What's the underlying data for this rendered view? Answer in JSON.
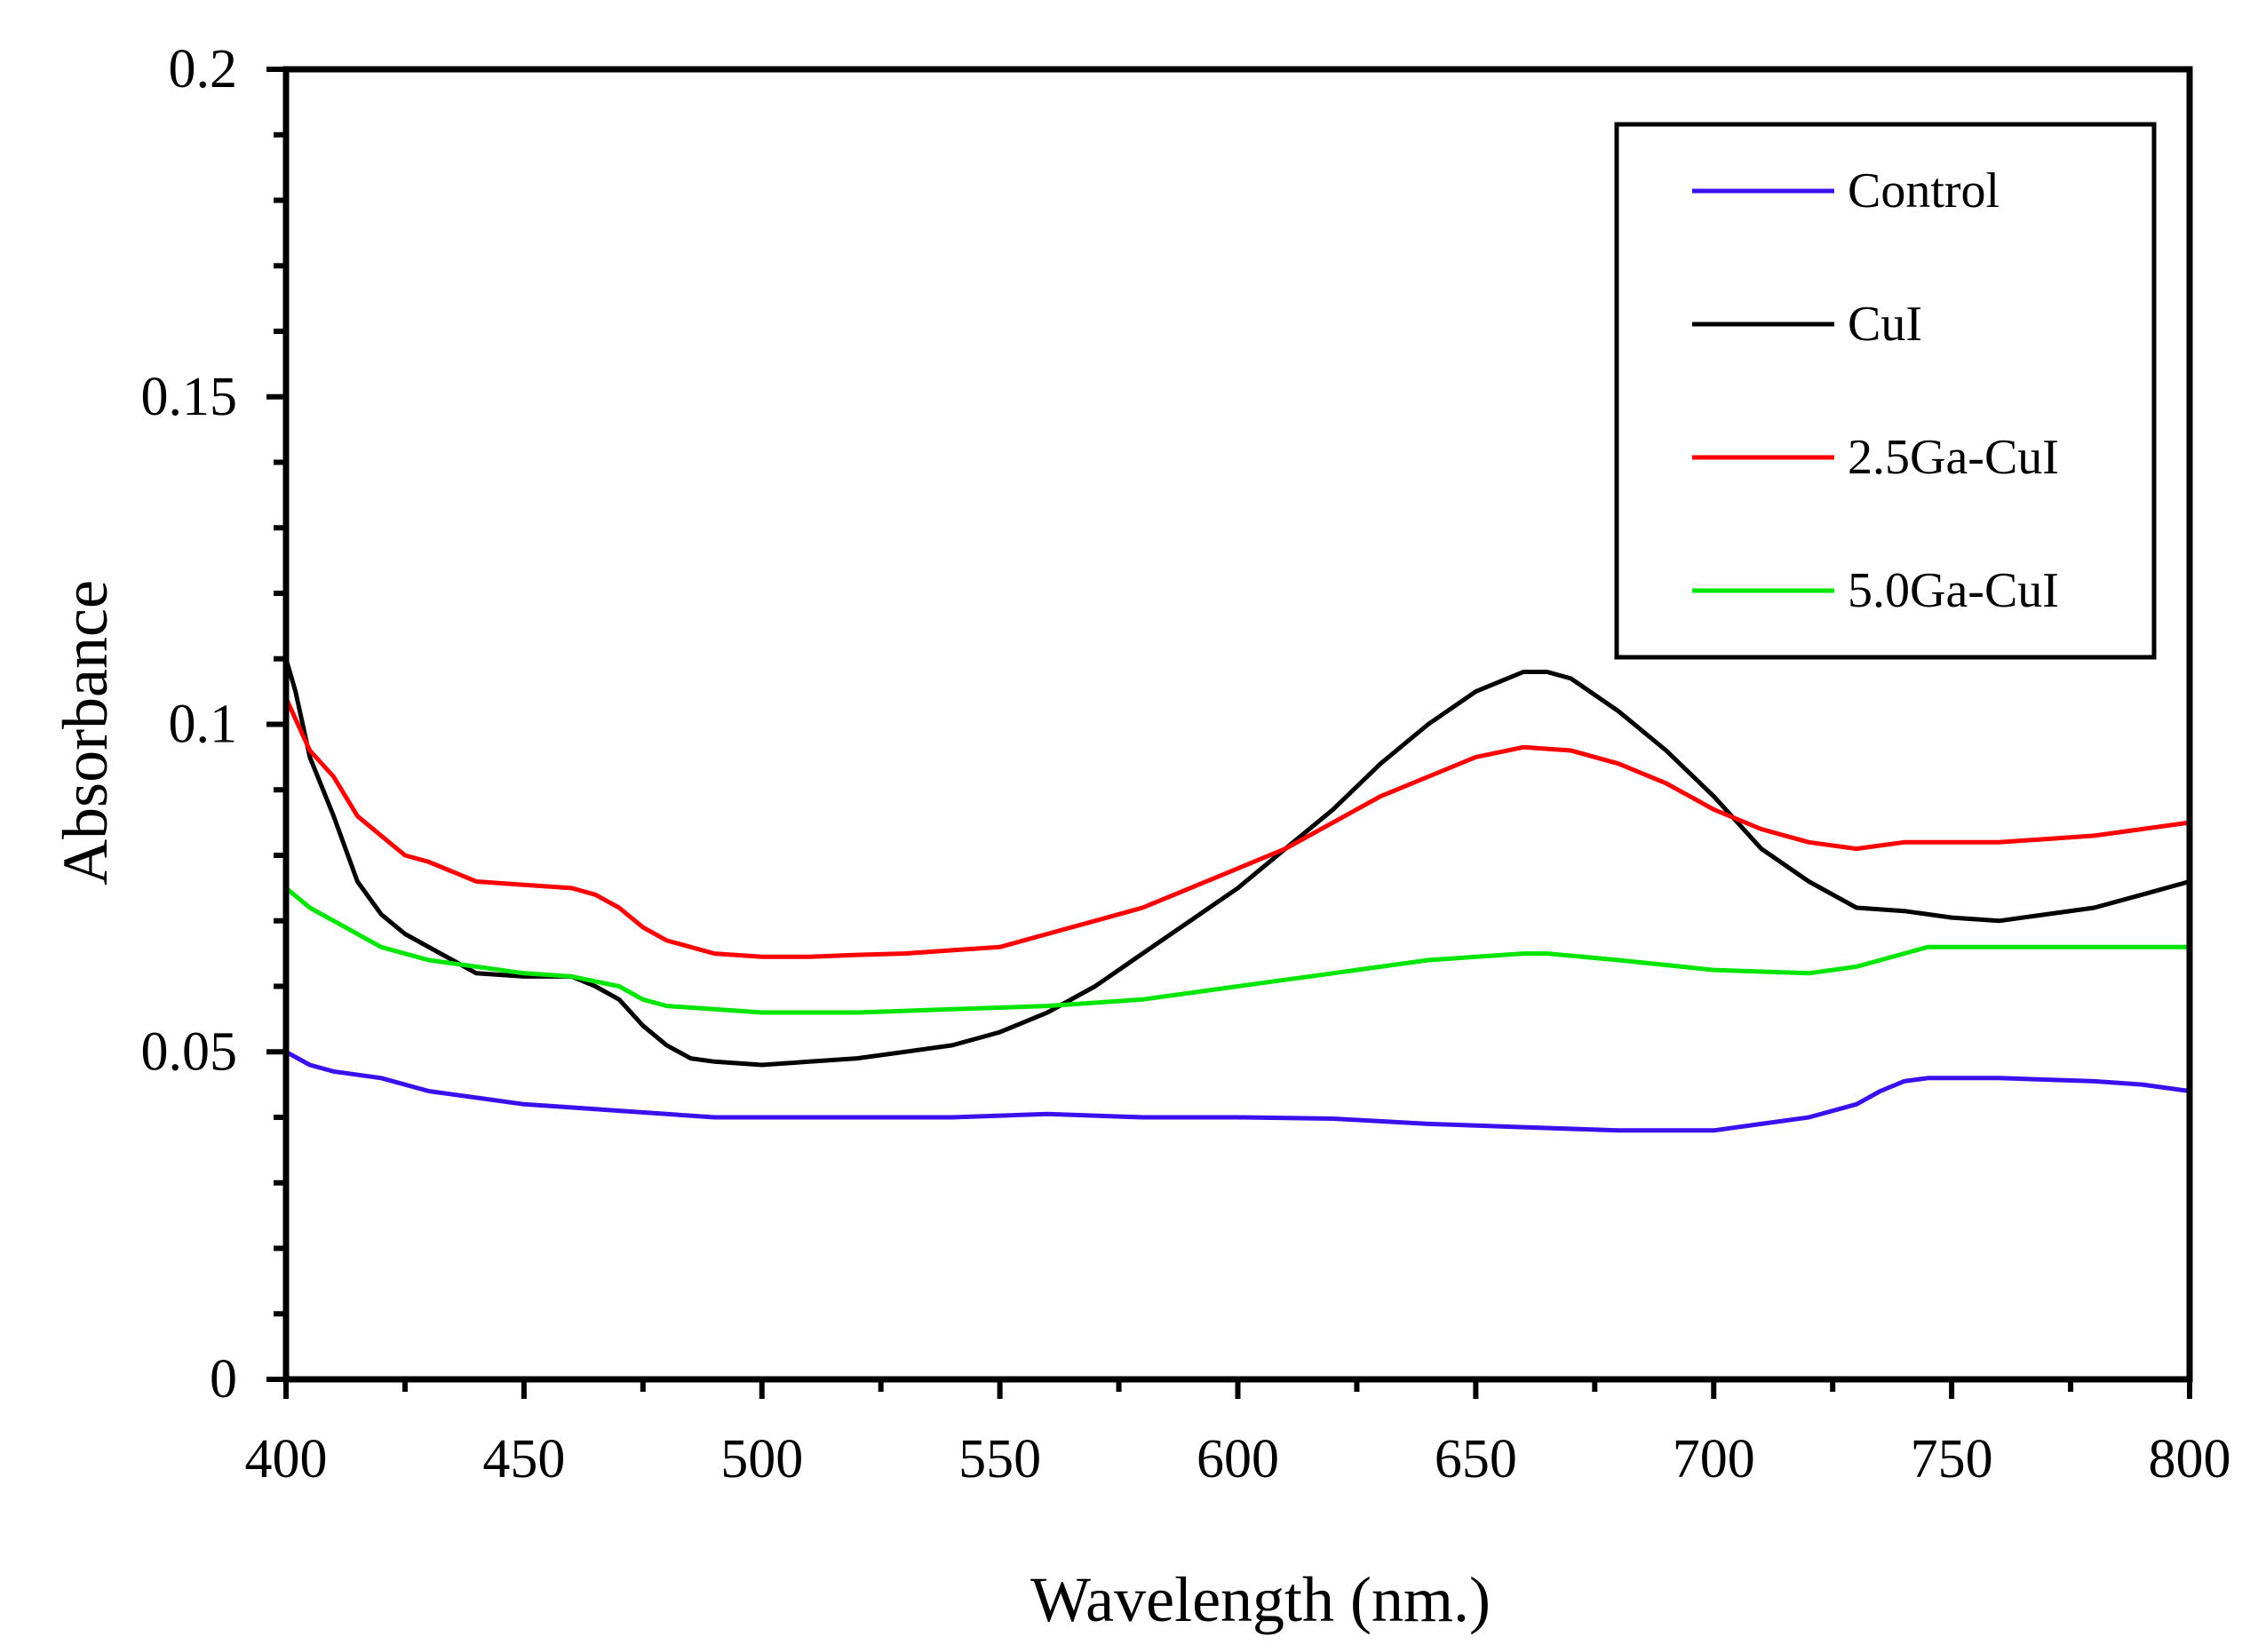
{
  "chart_data": {
    "type": "line",
    "title": "",
    "xlabel": "Wavelength (nm.)",
    "ylabel": "Absorbance",
    "xlim": [
      400,
      800
    ],
    "ylim": [
      0,
      0.2
    ],
    "x_ticks": [
      "400",
      "450",
      "500",
      "550",
      "600",
      "650",
      "700",
      "750",
      "800"
    ],
    "y_ticks": [
      "0",
      "0.05",
      "0.1",
      "0.15",
      "0.2"
    ],
    "x_tick_values": [
      400,
      450,
      500,
      550,
      600,
      650,
      700,
      750,
      800
    ],
    "y_tick_values": [
      0,
      0.05,
      0.1,
      0.15,
      0.2
    ],
    "x_minor_step": 25,
    "y_minor_step": 0.01,
    "grid": false,
    "legend_position": "top-right",
    "series": [
      {
        "name": "Control",
        "color": "#3a10ee",
        "x": [
          400,
          405,
          410,
          420,
          430,
          440,
          450,
          460,
          470,
          480,
          490,
          500,
          520,
          540,
          560,
          580,
          600,
          620,
          640,
          660,
          680,
          700,
          710,
          720,
          730,
          735,
          740,
          745,
          760,
          780,
          790,
          800
        ],
        "y": [
          0.05,
          0.048,
          0.047,
          0.046,
          0.044,
          0.043,
          0.042,
          0.0415,
          0.041,
          0.0405,
          0.04,
          0.04,
          0.04,
          0.04,
          0.0405,
          0.04,
          0.04,
          0.0398,
          0.039,
          0.0385,
          0.038,
          0.038,
          0.039,
          0.04,
          0.042,
          0.044,
          0.0455,
          0.046,
          0.046,
          0.0455,
          0.045,
          0.044
        ]
      },
      {
        "name": "CuI",
        "color": "#000000",
        "x": [
          400,
          402,
          405,
          410,
          415,
          420,
          425,
          430,
          435,
          440,
          450,
          460,
          465,
          470,
          475,
          480,
          485,
          490,
          500,
          510,
          520,
          530,
          540,
          550,
          560,
          570,
          580,
          590,
          600,
          610,
          620,
          630,
          640,
          650,
          660,
          665,
          670,
          680,
          690,
          700,
          710,
          720,
          730,
          740,
          750,
          760,
          770,
          780,
          790,
          800
        ],
        "y": [
          0.11,
          0.105,
          0.095,
          0.086,
          0.076,
          0.071,
          0.068,
          0.066,
          0.064,
          0.062,
          0.0615,
          0.0615,
          0.06,
          0.058,
          0.054,
          0.051,
          0.049,
          0.0485,
          0.048,
          0.0485,
          0.049,
          0.05,
          0.051,
          0.053,
          0.056,
          0.06,
          0.065,
          0.07,
          0.075,
          0.081,
          0.087,
          0.094,
          0.1,
          0.105,
          0.108,
          0.108,
          0.107,
          0.102,
          0.096,
          0.089,
          0.081,
          0.076,
          0.072,
          0.0715,
          0.0705,
          0.07,
          0.071,
          0.072,
          0.074,
          0.076
        ]
      },
      {
        "name": "2.5Ga-CuI",
        "color": "#ff0000",
        "x": [
          400,
          405,
          410,
          415,
          420,
          425,
          430,
          440,
          450,
          460,
          465,
          470,
          475,
          480,
          490,
          500,
          510,
          520,
          530,
          540,
          550,
          560,
          570,
          580,
          590,
          600,
          610,
          620,
          630,
          640,
          650,
          660,
          670,
          680,
          690,
          700,
          710,
          720,
          730,
          740,
          750,
          760,
          770,
          780,
          790,
          800
        ],
        "y": [
          0.104,
          0.096,
          0.092,
          0.086,
          0.083,
          0.08,
          0.079,
          0.076,
          0.0755,
          0.075,
          0.074,
          0.072,
          0.069,
          0.067,
          0.065,
          0.0645,
          0.0645,
          0.0648,
          0.065,
          0.0655,
          0.066,
          0.068,
          0.07,
          0.072,
          0.075,
          0.078,
          0.081,
          0.085,
          0.089,
          0.092,
          0.095,
          0.0965,
          0.096,
          0.094,
          0.091,
          0.087,
          0.084,
          0.082,
          0.081,
          0.082,
          0.082,
          0.082,
          0.0825,
          0.083,
          0.084,
          0.085
        ]
      },
      {
        "name": "5.0Ga-CuI",
        "color": "#00e600",
        "x": [
          400,
          405,
          410,
          420,
          430,
          440,
          450,
          460,
          470,
          475,
          480,
          490,
          500,
          520,
          540,
          560,
          580,
          600,
          620,
          640,
          660,
          665,
          680,
          700,
          720,
          730,
          740,
          745,
          760,
          780,
          800
        ],
        "y": [
          0.075,
          0.072,
          0.07,
          0.066,
          0.064,
          0.063,
          0.062,
          0.0615,
          0.06,
          0.058,
          0.057,
          0.0565,
          0.056,
          0.056,
          0.0565,
          0.057,
          0.058,
          0.06,
          0.062,
          0.064,
          0.065,
          0.065,
          0.064,
          0.0625,
          0.062,
          0.063,
          0.065,
          0.066,
          0.066,
          0.066,
          0.066
        ]
      }
    ]
  }
}
